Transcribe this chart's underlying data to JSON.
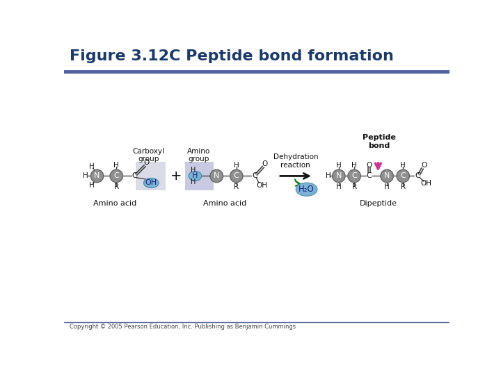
{
  "title": "Figure 3.12C Peptide bond formation",
  "title_color": "#1a3a6b",
  "title_fontsize": 16,
  "bg_color": "#ffffff",
  "header_line_color": "#5060a0",
  "copyright": "Copyright © 2005 Pearson Education, Inc. Publishing as Benjamin Cummings",
  "atom_gray": "#909090",
  "atom_outline": "#666666",
  "atom_blue": "#7ab4d5",
  "atom_blue_outline": "#5090b0",
  "carboxyl_bg": "#d0d0e0",
  "amino_bg": "#b8b8d8",
  "arrow_color": "#111111",
  "h2o_color": "#7ab4d5",
  "h2o_text": "H₂O",
  "dehydration_text": "Dehydration\nreaction",
  "peptide_bond_label": "Peptide\nbond",
  "peptide_arrow_color": "#d03090",
  "green_arrow_color": "#1a7a1a",
  "dipeptide_label": "Dipeptide",
  "amino_acid_label": "Amino acid",
  "carboxyl_label": "Carboxyl\ngroup",
  "amino_label": "Amino\ngroup"
}
